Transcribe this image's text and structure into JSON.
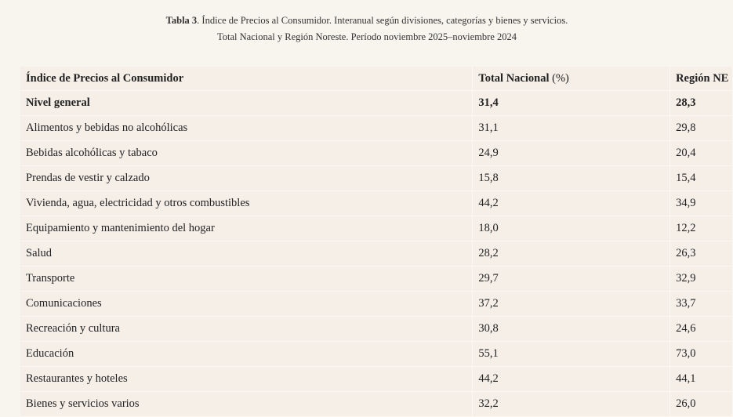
{
  "caption": {
    "label": "Tabla 3",
    "line1_rest": ". Índice de Precios al Consumidor. Interanual según divisiones, categorías y bienes y servicios.",
    "line2": "Total Nacional y Región Noreste. Período noviembre 2025–noviembre 2024"
  },
  "table": {
    "headers": {
      "col1": "Índice de Precios al Consumidor",
      "col2": "Total Nacional",
      "col2_unit": "(%)",
      "col3": "Región NE"
    },
    "rows": [
      {
        "label": "Nivel general",
        "nacional": "31,4",
        "noreste": "28,3"
      },
      {
        "label": "Alimentos y bebidas no alcohólicas",
        "nacional": "31,1",
        "noreste": "29,8"
      },
      {
        "label": "Bebidas alcohólicas y tabaco",
        "nacional": "24,9",
        "noreste": "20,4"
      },
      {
        "label": "Prendas de vestir y calzado",
        "nacional": "15,8",
        "noreste": "15,4"
      },
      {
        "label": "Vivienda, agua, electricidad y otros combustibles",
        "nacional": "44,2",
        "noreste": "34,9"
      },
      {
        "label": "Equipamiento y mantenimiento del hogar",
        "nacional": "18,0",
        "noreste": "12,2"
      },
      {
        "label": "Salud",
        "nacional": "28,2",
        "noreste": "26,3"
      },
      {
        "label": "Transporte",
        "nacional": "29,7",
        "noreste": "32,9"
      },
      {
        "label": "Comunicaciones",
        "nacional": "37,2",
        "noreste": "33,7"
      },
      {
        "label": "Recreación y cultura",
        "nacional": "30,8",
        "noreste": "24,6"
      },
      {
        "label": "Educación",
        "nacional": "55,1",
        "noreste": "73,0"
      },
      {
        "label": "Restaurantes y hoteles",
        "nacional": "44,2",
        "noreste": "44,1"
      },
      {
        "label": "Bienes y servicios varios",
        "nacional": "32,2",
        "noreste": "26,0"
      }
    ]
  }
}
